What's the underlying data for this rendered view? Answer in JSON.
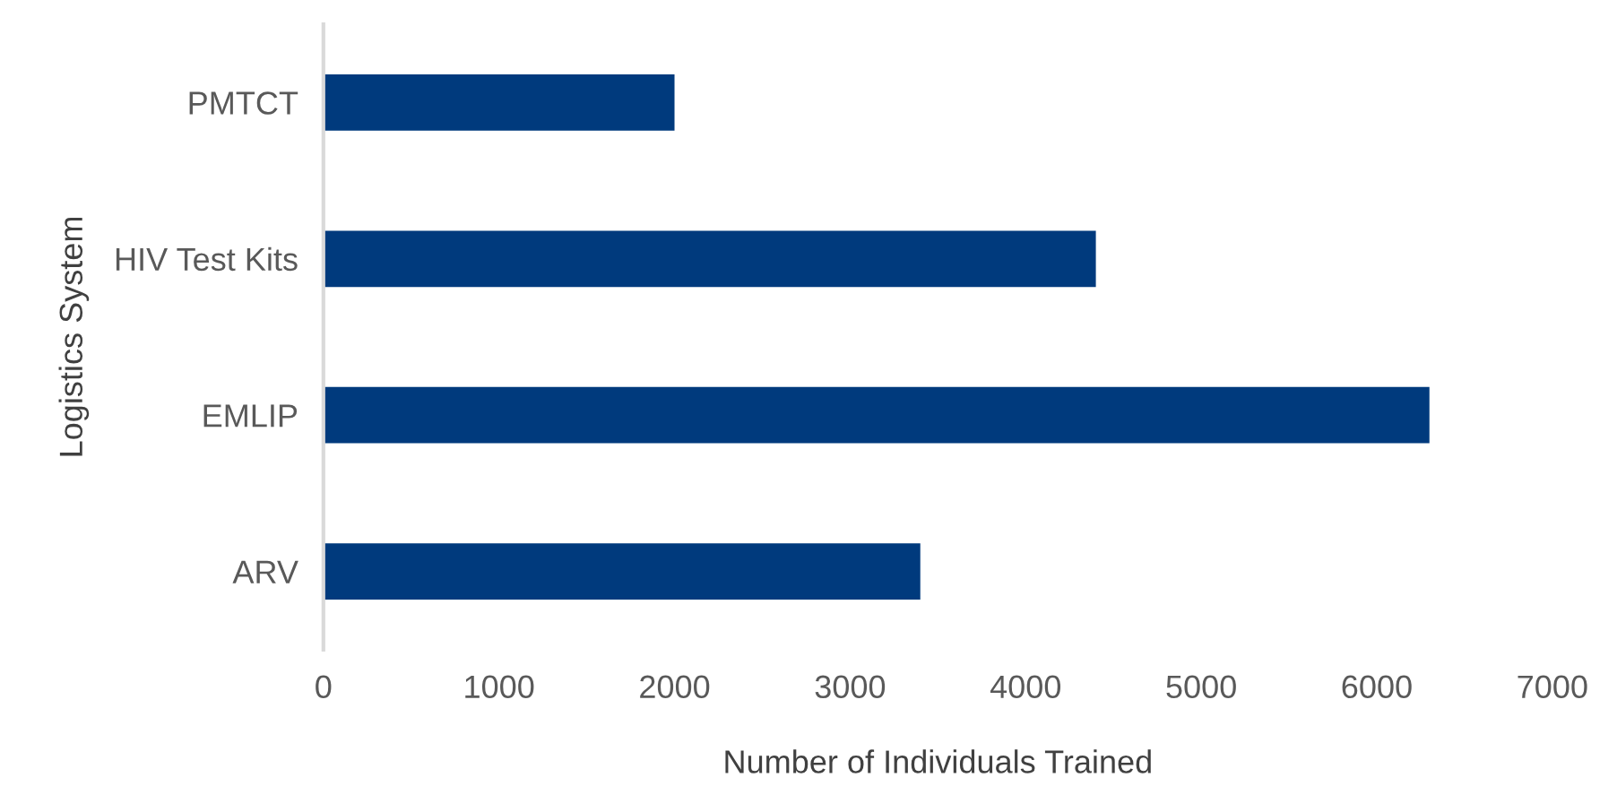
{
  "chart_data": {
    "type": "bar",
    "orientation": "horizontal",
    "xlabel": "Number of Individuals Trained",
    "ylabel": "Logistics System",
    "categories": [
      "PMTCT",
      "HIV Test Kits",
      "EMLIP",
      "ARV"
    ],
    "values": [
      2000,
      4400,
      6300,
      3400
    ],
    "color": "#003a7d",
    "xlim": [
      0,
      7000
    ],
    "xticks": [
      0,
      1000,
      2000,
      3000,
      4000,
      5000,
      6000,
      7000
    ],
    "grid": false,
    "legend": false
  }
}
